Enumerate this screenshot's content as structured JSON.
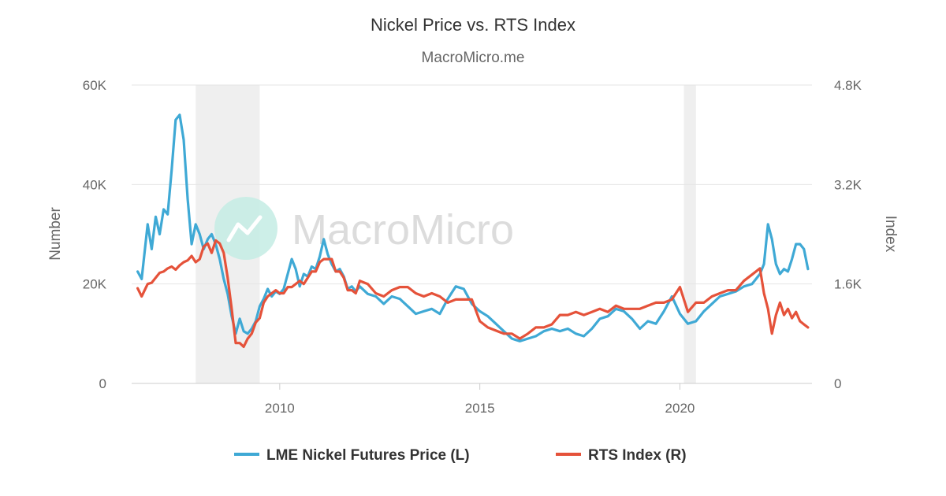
{
  "chart_data": {
    "type": "line",
    "title": "Nickel Price vs. RTS Index",
    "subtitle": "MacroMicro.me",
    "watermark": "MacroMicro",
    "left_axis": {
      "label": "Number",
      "min": 0,
      "max": 60000,
      "ticks": [
        0,
        20000,
        40000,
        60000
      ],
      "tick_labels": [
        "0",
        "20K",
        "40K",
        "60K"
      ]
    },
    "right_axis": {
      "label": "Index",
      "min": 0,
      "max": 4800,
      "ticks": [
        0,
        1600,
        3200,
        4800
      ],
      "tick_labels": [
        "0",
        "1.6K",
        "3.2K",
        "4.8K"
      ]
    },
    "x_axis": {
      "min": 2006.3,
      "max": 2023.3,
      "ticks": [
        2010,
        2015,
        2020
      ],
      "tick_labels": [
        "2010",
        "2015",
        "2020"
      ]
    },
    "grid": true,
    "legend_position": "bottom",
    "shaded_periods": [
      {
        "start": 2007.9,
        "end": 2009.5
      },
      {
        "start": 2020.1,
        "end": 2020.4
      }
    ],
    "series": [
      {
        "name": "LME Nickel Futures Price (L)",
        "axis": "left",
        "color": "#3FA9D5",
        "x": [
          2006.45,
          2006.55,
          2006.7,
          2006.8,
          2006.9,
          2007.0,
          2007.1,
          2007.2,
          2007.3,
          2007.4,
          2007.5,
          2007.6,
          2007.7,
          2007.8,
          2007.9,
          2008.0,
          2008.1,
          2008.2,
          2008.3,
          2008.4,
          2008.5,
          2008.6,
          2008.7,
          2008.8,
          2008.9,
          2009.0,
          2009.1,
          2009.2,
          2009.3,
          2009.4,
          2009.5,
          2009.6,
          2009.7,
          2009.8,
          2009.9,
          2010.0,
          2010.1,
          2010.2,
          2010.3,
          2010.4,
          2010.5,
          2010.6,
          2010.7,
          2010.8,
          2010.9,
          2011.0,
          2011.1,
          2011.2,
          2011.3,
          2011.4,
          2011.5,
          2011.6,
          2011.7,
          2011.8,
          2011.9,
          2012.0,
          2012.2,
          2012.4,
          2012.6,
          2012.8,
          2013.0,
          2013.2,
          2013.4,
          2013.6,
          2013.8,
          2014.0,
          2014.2,
          2014.4,
          2014.6,
          2014.8,
          2015.0,
          2015.2,
          2015.4,
          2015.6,
          2015.8,
          2016.0,
          2016.2,
          2016.4,
          2016.6,
          2016.8,
          2017.0,
          2017.2,
          2017.4,
          2017.6,
          2017.8,
          2018.0,
          2018.2,
          2018.4,
          2018.6,
          2018.8,
          2019.0,
          2019.2,
          2019.4,
          2019.6,
          2019.8,
          2020.0,
          2020.2,
          2020.4,
          2020.6,
          2020.8,
          2021.0,
          2021.2,
          2021.4,
          2021.6,
          2021.8,
          2022.0,
          2022.1,
          2022.2,
          2022.3,
          2022.4,
          2022.5,
          2022.6,
          2022.7,
          2022.8,
          2022.9,
          2023.0,
          2023.1,
          2023.2
        ],
        "values": [
          22500,
          21000,
          32000,
          27000,
          33500,
          30000,
          35000,
          34000,
          43000,
          53000,
          54000,
          49000,
          37000,
          28000,
          32000,
          30000,
          27000,
          29000,
          30000,
          28000,
          25000,
          21000,
          18000,
          13500,
          10000,
          13000,
          10500,
          10000,
          11000,
          12500,
          15500,
          17000,
          19000,
          17500,
          18500,
          18000,
          19000,
          22000,
          25000,
          23000,
          19500,
          22000,
          21500,
          23500,
          23000,
          25500,
          29000,
          26000,
          24000,
          22500,
          23000,
          21500,
          19000,
          19500,
          18500,
          19500,
          18000,
          17500,
          16000,
          17500,
          17000,
          15500,
          14000,
          14500,
          15000,
          14000,
          17000,
          19500,
          19000,
          16000,
          14500,
          13500,
          12000,
          10500,
          9000,
          8500,
          9000,
          9500,
          10500,
          11000,
          10500,
          11000,
          10000,
          9500,
          11000,
          13000,
          13500,
          15000,
          14500,
          13000,
          11000,
          12500,
          12000,
          14500,
          17500,
          14000,
          12000,
          12500,
          14500,
          16000,
          17500,
          18000,
          18500,
          19500,
          20000,
          22000,
          24000,
          32000,
          29000,
          24000,
          22000,
          23000,
          22500,
          25000,
          28000,
          28000,
          27000,
          23000
        ]
      },
      {
        "name": "RTS Index (R)",
        "axis": "right",
        "color": "#E5523A",
        "x": [
          2006.45,
          2006.55,
          2006.7,
          2006.8,
          2006.9,
          2007.0,
          2007.1,
          2007.2,
          2007.3,
          2007.4,
          2007.5,
          2007.6,
          2007.7,
          2007.8,
          2007.9,
          2008.0,
          2008.1,
          2008.2,
          2008.3,
          2008.4,
          2008.5,
          2008.6,
          2008.7,
          2008.8,
          2008.9,
          2009.0,
          2009.1,
          2009.2,
          2009.3,
          2009.4,
          2009.5,
          2009.6,
          2009.7,
          2009.8,
          2009.9,
          2010.0,
          2010.1,
          2010.2,
          2010.3,
          2010.4,
          2010.5,
          2010.6,
          2010.7,
          2010.8,
          2010.9,
          2011.0,
          2011.1,
          2011.2,
          2011.3,
          2011.4,
          2011.5,
          2011.6,
          2011.7,
          2011.8,
          2011.9,
          2012.0,
          2012.2,
          2012.4,
          2012.6,
          2012.8,
          2013.0,
          2013.2,
          2013.4,
          2013.6,
          2013.8,
          2014.0,
          2014.2,
          2014.4,
          2014.6,
          2014.8,
          2015.0,
          2015.2,
          2015.4,
          2015.6,
          2015.8,
          2016.0,
          2016.2,
          2016.4,
          2016.6,
          2016.8,
          2017.0,
          2017.2,
          2017.4,
          2017.6,
          2017.8,
          2018.0,
          2018.2,
          2018.4,
          2018.6,
          2018.8,
          2019.0,
          2019.2,
          2019.4,
          2019.6,
          2019.8,
          2020.0,
          2020.2,
          2020.4,
          2020.6,
          2020.8,
          2021.0,
          2021.2,
          2021.4,
          2021.6,
          2021.8,
          2022.0,
          2022.1,
          2022.2,
          2022.3,
          2022.4,
          2022.5,
          2022.6,
          2022.7,
          2022.8,
          2022.9,
          2023.0,
          2023.1,
          2023.2
        ],
        "values": [
          1530,
          1400,
          1600,
          1620,
          1700,
          1780,
          1800,
          1850,
          1880,
          1830,
          1900,
          1950,
          1980,
          2050,
          1950,
          2000,
          2200,
          2250,
          2100,
          2300,
          2250,
          2100,
          1700,
          1200,
          650,
          650,
          590,
          720,
          800,
          980,
          1050,
          1300,
          1400,
          1450,
          1500,
          1450,
          1450,
          1550,
          1550,
          1600,
          1650,
          1600,
          1700,
          1800,
          1800,
          1950,
          2000,
          2000,
          2000,
          1800,
          1800,
          1700,
          1500,
          1500,
          1450,
          1650,
          1600,
          1450,
          1400,
          1500,
          1550,
          1550,
          1450,
          1400,
          1450,
          1400,
          1300,
          1350,
          1350,
          1350,
          1000,
          900,
          850,
          800,
          800,
          720,
          800,
          900,
          900,
          950,
          1100,
          1100,
          1150,
          1100,
          1150,
          1200,
          1150,
          1250,
          1200,
          1200,
          1200,
          1250,
          1300,
          1300,
          1350,
          1550,
          1150,
          1300,
          1300,
          1400,
          1450,
          1500,
          1500,
          1650,
          1750,
          1850,
          1450,
          1200,
          800,
          1100,
          1300,
          1100,
          1200,
          1050,
          1150,
          1000,
          950,
          900
        ]
      }
    ]
  }
}
